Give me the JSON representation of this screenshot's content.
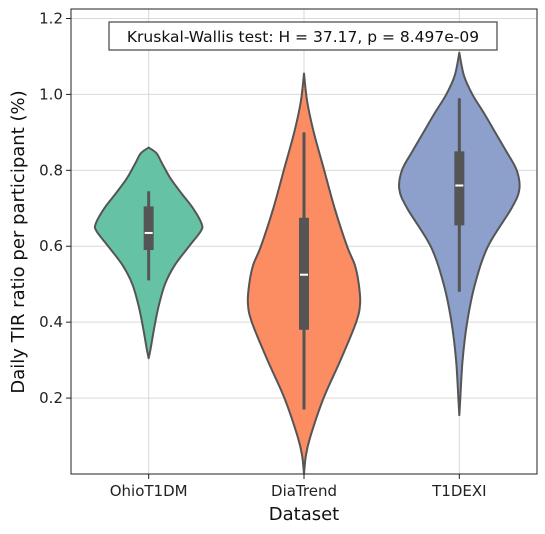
{
  "chart_data": {
    "type": "violin",
    "title": "",
    "xlabel": "Dataset",
    "ylabel": "Daily TIR ratio per participant (%)",
    "ylim": [
      0.0,
      1.225
    ],
    "yticks": [
      0.2,
      0.4,
      0.6,
      0.8,
      1.0,
      1.2
    ],
    "ytick_labels": [
      "0.2",
      "0.4",
      "0.6",
      "0.8",
      "1.0",
      "1.2"
    ],
    "grid": true,
    "annotation": "Kruskal-Wallis test: H = 37.17, p = 8.497e-09",
    "categories": [
      "OhioT1DM",
      "DiaTrend",
      "T1DEXI"
    ],
    "colors": [
      "#66c2a5",
      "#fc8d62",
      "#8da0cb"
    ],
    "edge_color": "#555555",
    "series": [
      {
        "category": "OhioT1DM",
        "median": 0.635,
        "q1": 0.59,
        "q3": 0.705,
        "whisker_low": 0.51,
        "whisker_high": 0.745,
        "density": [
          [
            0.305,
            0.0
          ],
          [
            0.33,
            0.03
          ],
          [
            0.38,
            0.08
          ],
          [
            0.44,
            0.15
          ],
          [
            0.5,
            0.25
          ],
          [
            0.55,
            0.4
          ],
          [
            0.6,
            0.62
          ],
          [
            0.64,
            0.8
          ],
          [
            0.66,
            0.81
          ],
          [
            0.7,
            0.68
          ],
          [
            0.74,
            0.5
          ],
          [
            0.78,
            0.33
          ],
          [
            0.82,
            0.2
          ],
          [
            0.845,
            0.12
          ],
          [
            0.86,
            0.0
          ]
        ]
      },
      {
        "category": "DiaTrend",
        "median": 0.525,
        "q1": 0.38,
        "q3": 0.675,
        "whisker_low": 0.17,
        "whisker_high": 0.9,
        "density": [
          [
            0.0,
            0.0
          ],
          [
            0.05,
            0.03
          ],
          [
            0.1,
            0.1
          ],
          [
            0.2,
            0.3
          ],
          [
            0.3,
            0.56
          ],
          [
            0.4,
            0.8
          ],
          [
            0.45,
            0.86
          ],
          [
            0.5,
            0.84
          ],
          [
            0.55,
            0.78
          ],
          [
            0.6,
            0.66
          ],
          [
            0.7,
            0.47
          ],
          [
            0.8,
            0.31
          ],
          [
            0.9,
            0.15
          ],
          [
            0.98,
            0.05
          ],
          [
            1.055,
            0.0
          ]
        ]
      },
      {
        "category": "T1DEXI",
        "median": 0.76,
        "q1": 0.655,
        "q3": 0.85,
        "whisker_low": 0.48,
        "whisker_high": 0.99,
        "density": [
          [
            0.155,
            0.0
          ],
          [
            0.2,
            0.015
          ],
          [
            0.3,
            0.05
          ],
          [
            0.4,
            0.12
          ],
          [
            0.5,
            0.24
          ],
          [
            0.6,
            0.44
          ],
          [
            0.7,
            0.8
          ],
          [
            0.75,
            0.92
          ],
          [
            0.8,
            0.88
          ],
          [
            0.85,
            0.72
          ],
          [
            0.9,
            0.55
          ],
          [
            0.95,
            0.38
          ],
          [
            1.0,
            0.2
          ],
          [
            1.05,
            0.07
          ],
          [
            1.11,
            0.0
          ]
        ]
      }
    ]
  }
}
